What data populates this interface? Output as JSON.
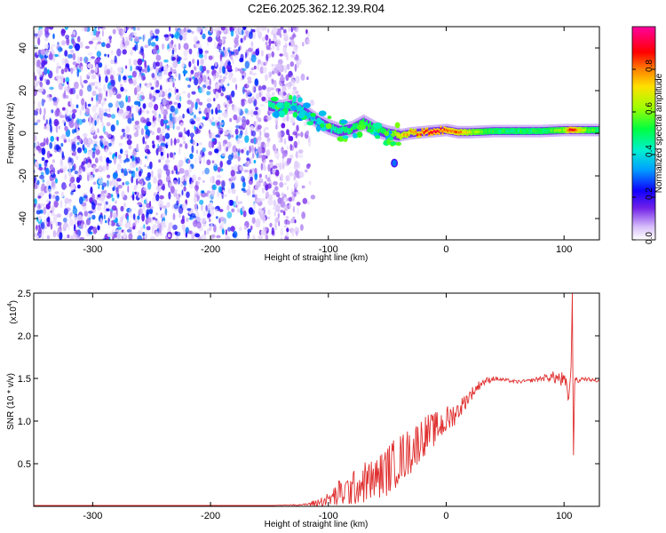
{
  "figure": {
    "title": "C2E6.2025.362.12.39.R04"
  },
  "chart_data": [
    {
      "type": "heatmap",
      "xlabel": "Height of straight line (km)",
      "ylabel": "Frequency (Hz)",
      "xlim": [
        -350,
        130
      ],
      "ylim": [
        -50,
        50
      ],
      "xticks": [
        -300,
        -200,
        -100,
        0,
        100
      ],
      "yticks": [
        -40,
        -20,
        0,
        20,
        40
      ],
      "colorbar": {
        "label": "Normalized spectral amplitude",
        "range": [
          0.0,
          1.0
        ],
        "ticks": [
          0.0,
          0.2,
          0.4,
          0.6,
          0.8
        ],
        "tick_labels": [
          "0.0",
          "0.2",
          "0.4",
          "0.6",
          "0.8"
        ],
        "colormap": [
          "#ffffff",
          "#c8a8f8",
          "#6010e0",
          "#0000ff",
          "#00c8ff",
          "#00ff60",
          "#c0ff00",
          "#ffa000",
          "#ff0000",
          "#ff0080"
        ]
      },
      "noise_region": {
        "x_range": [
          -350,
          -125
        ],
        "y_range": [
          -50,
          50
        ],
        "amplitude": 0.15
      },
      "signal_track": [
        {
          "x": -150,
          "y": 13,
          "amp": 0.45
        },
        {
          "x": -140,
          "y": 12,
          "amp": 0.35
        },
        {
          "x": -130,
          "y": 13,
          "amp": 0.45
        },
        {
          "x": -120,
          "y": 10,
          "amp": 0.4
        },
        {
          "x": -110,
          "y": 6,
          "amp": 0.35
        },
        {
          "x": -100,
          "y": 3,
          "amp": 0.4
        },
        {
          "x": -90,
          "y": 1,
          "amp": 0.45
        },
        {
          "x": -80,
          "y": 2,
          "amp": 0.5
        },
        {
          "x": -70,
          "y": 5,
          "amp": 0.55
        },
        {
          "x": -60,
          "y": 2,
          "amp": 0.5
        },
        {
          "x": -50,
          "y": 0,
          "amp": 0.55
        },
        {
          "x": -40,
          "y": -1,
          "amp": 0.7
        },
        {
          "x": -30,
          "y": 0,
          "amp": 0.75
        },
        {
          "x": -20,
          "y": 0.5,
          "amp": 0.85
        },
        {
          "x": -10,
          "y": 1,
          "amp": 0.9
        },
        {
          "x": 0,
          "y": 1.5,
          "amp": 0.85
        },
        {
          "x": 10,
          "y": 0.5,
          "amp": 0.8
        },
        {
          "x": 20,
          "y": 0.5,
          "amp": 0.65
        },
        {
          "x": 40,
          "y": 1,
          "amp": 0.5
        },
        {
          "x": 60,
          "y": 1,
          "amp": 0.5
        },
        {
          "x": 80,
          "y": 1,
          "amp": 0.5
        },
        {
          "x": 100,
          "y": 1.5,
          "amp": 0.6
        },
        {
          "x": 105,
          "y": 1.5,
          "amp": 0.9
        },
        {
          "x": 120,
          "y": 1.5,
          "amp": 0.55
        },
        {
          "x": 130,
          "y": 1.5,
          "amp": 0.5
        }
      ]
    },
    {
      "type": "line",
      "xlabel": "Height of straight line (km)",
      "ylabel": "SNR (10 * v/v)",
      "multiplier_label": "(x10",
      "multiplier_exponent": "4",
      "xlim": [
        -350,
        130
      ],
      "ylim": [
        0,
        2.5
      ],
      "xticks": [
        -300,
        -200,
        -100,
        0,
        100
      ],
      "yticks": [
        0.5,
        1.0,
        1.5,
        2.0,
        2.5
      ],
      "color": "#e03030",
      "series": [
        {
          "x": [
            -350,
            -300,
            -250,
            -200,
            -150,
            -120,
            -110,
            -100,
            -90,
            -80,
            -70,
            -60,
            -50,
            -40,
            -30,
            -20,
            -10,
            0,
            10,
            20,
            30,
            40,
            50,
            60,
            70,
            80,
            90,
            95,
            100,
            104,
            106,
            107,
            108,
            109,
            110,
            112,
            115,
            120,
            130
          ],
          "values": [
            0.01,
            0.01,
            0.01,
            0.01,
            0.01,
            0.02,
            0.04,
            0.08,
            0.15,
            0.2,
            0.28,
            0.32,
            0.42,
            0.55,
            0.65,
            0.82,
            0.9,
            1.0,
            1.12,
            1.3,
            1.45,
            1.5,
            1.48,
            1.46,
            1.47,
            1.5,
            1.52,
            1.5,
            1.47,
            1.3,
            1.6,
            2.5,
            0.6,
            1.45,
            1.5,
            1.46,
            1.5,
            1.49,
            1.47
          ],
          "noise": [
            0,
            0,
            0,
            0,
            0,
            0.01,
            0.05,
            0.08,
            0.18,
            0.2,
            0.25,
            0.25,
            0.3,
            0.3,
            0.28,
            0.25,
            0.2,
            0.18,
            0.12,
            0.08,
            0.05,
            0.03,
            0.02,
            0.02,
            0.02,
            0.03,
            0.06,
            0.1,
            0.1,
            0.12,
            0.05,
            0,
            0,
            0.04,
            0.03,
            0.02,
            0.02,
            0.02,
            0.02
          ]
        }
      ]
    }
  ]
}
